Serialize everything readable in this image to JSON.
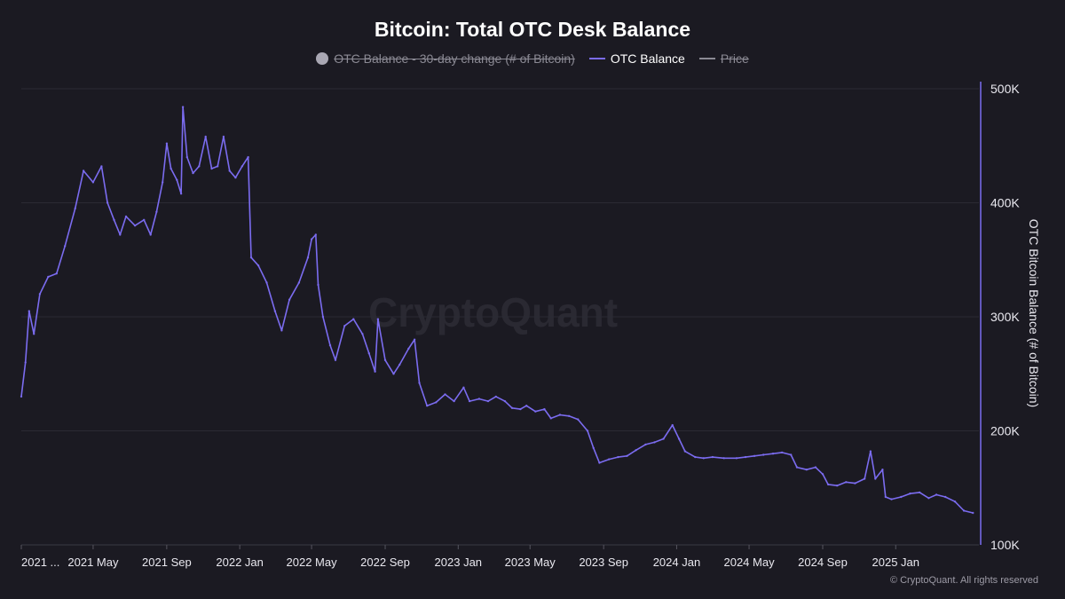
{
  "chart_data": {
    "type": "line",
    "title": "Bitcoin: Total OTC Desk Balance",
    "legend": [
      {
        "label": "OTC Balance - 30-day change (# of Bitcoin)",
        "marker": "dot",
        "color": "#a9a7b3",
        "state": "hidden"
      },
      {
        "label": "OTC Balance",
        "marker": "line",
        "color": "#7b6cf0",
        "state": "active"
      },
      {
        "label": "Price",
        "marker": "line",
        "color": "#8b8a94",
        "state": "hidden"
      }
    ],
    "legend_position": "top-center",
    "ylabel": "OTC Bitcoin Balance (# of Bitcoin)",
    "yaxis_position": "right",
    "ylim": [
      100000,
      500000
    ],
    "yticks": [
      {
        "value": 500000,
        "label": "500K"
      },
      {
        "value": 400000,
        "label": "400K"
      },
      {
        "value": 300000,
        "label": "300K"
      },
      {
        "value": 200000,
        "label": "200K"
      },
      {
        "value": 100000,
        "label": "100K"
      }
    ],
    "xlim": [
      "2021-01-01",
      "2025-05-20"
    ],
    "xticks": [
      {
        "date": "2021-01-01",
        "label": "2021 ..."
      },
      {
        "date": "2021-05-01",
        "label": "2021 May"
      },
      {
        "date": "2021-09-01",
        "label": "2021 Sep"
      },
      {
        "date": "2022-01-01",
        "label": "2022 Jan"
      },
      {
        "date": "2022-05-01",
        "label": "2022 May"
      },
      {
        "date": "2022-09-01",
        "label": "2022 Sep"
      },
      {
        "date": "2023-01-01",
        "label": "2023 Jan"
      },
      {
        "date": "2023-05-01",
        "label": "2023 May"
      },
      {
        "date": "2023-09-01",
        "label": "2023 Sep"
      },
      {
        "date": "2024-01-01",
        "label": "2024 Jan"
      },
      {
        "date": "2024-05-01",
        "label": "2024 May"
      },
      {
        "date": "2024-09-01",
        "label": "2024 Sep"
      },
      {
        "date": "2025-01-01",
        "label": "2025 Jan"
      }
    ],
    "grid": true,
    "series": [
      {
        "name": "OTC Balance",
        "color": "#7b6cf0",
        "points": [
          [
            "2021-01-01",
            230000
          ],
          [
            "2021-01-08",
            260000
          ],
          [
            "2021-01-14",
            305000
          ],
          [
            "2021-01-22",
            285000
          ],
          [
            "2021-02-01",
            320000
          ],
          [
            "2021-02-15",
            335000
          ],
          [
            "2021-03-01",
            338000
          ],
          [
            "2021-03-15",
            362000
          ],
          [
            "2021-04-01",
            395000
          ],
          [
            "2021-04-15",
            428000
          ],
          [
            "2021-05-01",
            418000
          ],
          [
            "2021-05-15",
            432000
          ],
          [
            "2021-05-25",
            400000
          ],
          [
            "2021-06-05",
            385000
          ],
          [
            "2021-06-15",
            372000
          ],
          [
            "2021-06-25",
            388000
          ],
          [
            "2021-07-10",
            380000
          ],
          [
            "2021-07-25",
            385000
          ],
          [
            "2021-08-05",
            372000
          ],
          [
            "2021-08-15",
            392000
          ],
          [
            "2021-08-25",
            418000
          ],
          [
            "2021-09-01",
            452000
          ],
          [
            "2021-09-08",
            430000
          ],
          [
            "2021-09-18",
            420000
          ],
          [
            "2021-09-25",
            408000
          ],
          [
            "2021-09-28",
            484000
          ],
          [
            "2021-10-05",
            440000
          ],
          [
            "2021-10-15",
            426000
          ],
          [
            "2021-10-25",
            432000
          ],
          [
            "2021-11-05",
            458000
          ],
          [
            "2021-11-15",
            430000
          ],
          [
            "2021-11-25",
            432000
          ],
          [
            "2021-12-05",
            458000
          ],
          [
            "2021-12-15",
            428000
          ],
          [
            "2021-12-25",
            422000
          ],
          [
            "2022-01-05",
            432000
          ],
          [
            "2022-01-15",
            440000
          ],
          [
            "2022-01-20",
            352000
          ],
          [
            "2022-02-01",
            345000
          ],
          [
            "2022-02-15",
            330000
          ],
          [
            "2022-03-01",
            305000
          ],
          [
            "2022-03-12",
            288000
          ],
          [
            "2022-03-25",
            315000
          ],
          [
            "2022-04-10",
            330000
          ],
          [
            "2022-04-25",
            352000
          ],
          [
            "2022-05-01",
            368000
          ],
          [
            "2022-05-08",
            372000
          ],
          [
            "2022-05-12",
            328000
          ],
          [
            "2022-05-20",
            300000
          ],
          [
            "2022-06-01",
            275000
          ],
          [
            "2022-06-10",
            262000
          ],
          [
            "2022-06-25",
            292000
          ],
          [
            "2022-07-10",
            298000
          ],
          [
            "2022-07-25",
            285000
          ],
          [
            "2022-08-05",
            268000
          ],
          [
            "2022-08-15",
            252000
          ],
          [
            "2022-08-20",
            298000
          ],
          [
            "2022-09-01",
            262000
          ],
          [
            "2022-09-15",
            250000
          ],
          [
            "2022-09-25",
            258000
          ],
          [
            "2022-10-10",
            272000
          ],
          [
            "2022-10-20",
            280000
          ],
          [
            "2022-10-28",
            242000
          ],
          [
            "2022-11-10",
            222000
          ],
          [
            "2022-11-25",
            225000
          ],
          [
            "2022-12-10",
            232000
          ],
          [
            "2022-12-25",
            226000
          ],
          [
            "2023-01-10",
            238000
          ],
          [
            "2023-01-20",
            226000
          ],
          [
            "2023-02-05",
            228000
          ],
          [
            "2023-02-20",
            226000
          ],
          [
            "2023-03-05",
            230000
          ],
          [
            "2023-03-20",
            226000
          ],
          [
            "2023-04-01",
            220000
          ],
          [
            "2023-04-15",
            219000
          ],
          [
            "2023-04-25",
            222000
          ],
          [
            "2023-05-10",
            217000
          ],
          [
            "2023-05-25",
            219000
          ],
          [
            "2023-06-05",
            211000
          ],
          [
            "2023-06-20",
            214000
          ],
          [
            "2023-07-05",
            213000
          ],
          [
            "2023-07-20",
            210000
          ],
          [
            "2023-08-05",
            200000
          ],
          [
            "2023-08-15",
            185000
          ],
          [
            "2023-08-25",
            172000
          ],
          [
            "2023-09-10",
            175000
          ],
          [
            "2023-09-25",
            177000
          ],
          [
            "2023-10-10",
            178000
          ],
          [
            "2023-10-25",
            183000
          ],
          [
            "2023-11-10",
            188000
          ],
          [
            "2023-11-25",
            190000
          ],
          [
            "2023-12-10",
            193000
          ],
          [
            "2023-12-25",
            205000
          ],
          [
            "2024-01-05",
            193000
          ],
          [
            "2024-01-15",
            182000
          ],
          [
            "2024-02-01",
            177000
          ],
          [
            "2024-02-15",
            176000
          ],
          [
            "2024-03-01",
            177000
          ],
          [
            "2024-03-20",
            176000
          ],
          [
            "2024-04-10",
            176000
          ],
          [
            "2024-04-25",
            177000
          ],
          [
            "2024-05-10",
            178000
          ],
          [
            "2024-05-25",
            179000
          ],
          [
            "2024-06-10",
            180000
          ],
          [
            "2024-06-25",
            181000
          ],
          [
            "2024-07-10",
            179000
          ],
          [
            "2024-07-20",
            168000
          ],
          [
            "2024-08-05",
            166000
          ],
          [
            "2024-08-20",
            168000
          ],
          [
            "2024-09-01",
            162000
          ],
          [
            "2024-09-10",
            153000
          ],
          [
            "2024-09-25",
            152000
          ],
          [
            "2024-10-10",
            155000
          ],
          [
            "2024-10-25",
            154000
          ],
          [
            "2024-11-10",
            158000
          ],
          [
            "2024-11-20",
            182000
          ],
          [
            "2024-11-28",
            158000
          ],
          [
            "2024-12-10",
            166000
          ],
          [
            "2024-12-15",
            142000
          ],
          [
            "2024-12-25",
            140000
          ],
          [
            "2025-01-10",
            142000
          ],
          [
            "2025-01-25",
            145000
          ],
          [
            "2025-02-10",
            146000
          ],
          [
            "2025-02-25",
            141000
          ],
          [
            "2025-03-10",
            144000
          ],
          [
            "2025-03-25",
            142000
          ],
          [
            "2025-04-10",
            138000
          ],
          [
            "2025-04-25",
            130000
          ],
          [
            "2025-05-10",
            128000
          ]
        ]
      }
    ]
  },
  "watermark": "CryptoQuant",
  "copyright": "© CryptoQuant. All rights reserved"
}
